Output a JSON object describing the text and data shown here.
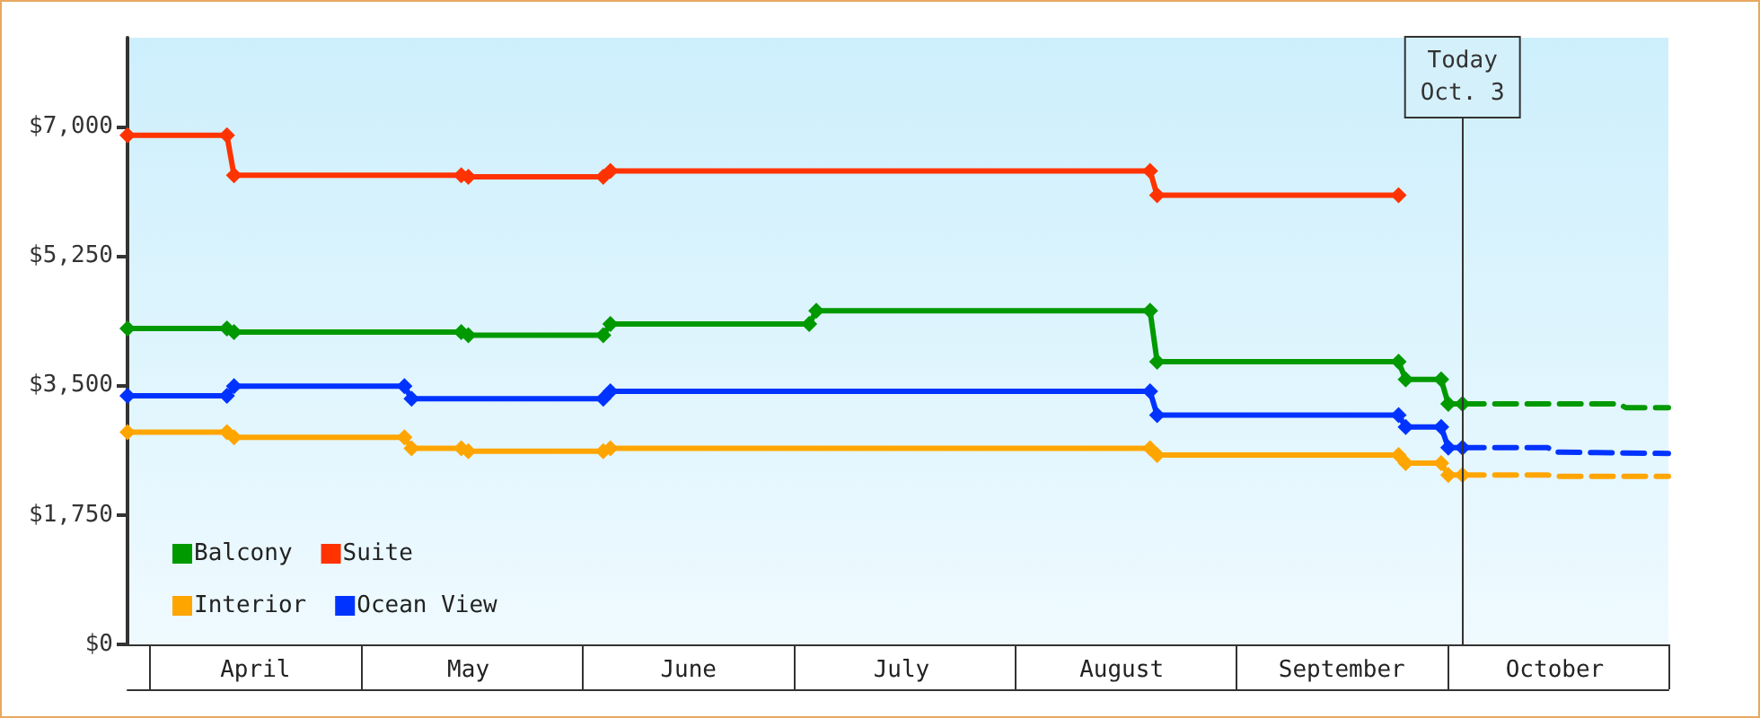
{
  "chart_data": {
    "type": "line",
    "xlim": [
      "--03-29",
      "--11-01"
    ],
    "xticks": [
      {
        "value": "--04-01",
        "label": null
      },
      {
        "value": "--04-16",
        "label": "April"
      },
      {
        "value": "--05-01",
        "label": null
      },
      {
        "value": "--05-16",
        "label": "May"
      },
      {
        "value": "--06-01",
        "label": null
      },
      {
        "value": "--06-16",
        "label": "June"
      },
      {
        "value": "--07-01",
        "label": null
      },
      {
        "value": "--07-16",
        "label": "July"
      },
      {
        "value": "--08-01",
        "label": null
      },
      {
        "value": "--08-16",
        "label": "August"
      },
      {
        "value": "--09-01",
        "label": null
      },
      {
        "value": "--09-16",
        "label": "September"
      },
      {
        "value": "--10-01",
        "label": null
      },
      {
        "value": "--10-16",
        "label": "October"
      },
      {
        "value": "--11-01",
        "label": null
      }
    ],
    "ylim": [
      0,
      8200
    ],
    "yticks": [
      {
        "value": 0,
        "label": "$0"
      },
      {
        "value": 1750,
        "label": "$1,750"
      },
      {
        "value": 3500,
        "label": "$3,500"
      },
      {
        "value": 5250,
        "label": "$5,250"
      },
      {
        "value": 7000,
        "label": "$7,000"
      }
    ],
    "grid": false,
    "legend": "bottom left",
    "marker": "diamond",
    "line_style": "solid",
    "ref_lines": [
      {
        "axis": "x",
        "value": "--10-03",
        "label": "Today\nOct. 3",
        "color": "#333333"
      }
    ],
    "series": [
      {
        "name": "Balcony",
        "color": "#009900",
        "x": [
          "--03-29",
          "--04-12",
          "--04-13",
          "--05-15",
          "--05-16",
          "--06-04",
          "--06-05",
          "--07-03",
          "--07-04",
          "--08-20",
          "--08-21",
          "--09-24",
          "--09-25",
          "--09-30",
          "--10-01",
          "--10-03"
        ],
        "values": [
          4270,
          4270,
          4220,
          4220,
          4180,
          4180,
          4330,
          4330,
          4510,
          4510,
          3820,
          3820,
          3580,
          3580,
          3250,
          3250
        ]
      },
      {
        "name": "Suite",
        "color": "#ff3300",
        "x": [
          "--03-29",
          "--04-12",
          "--04-13",
          "--05-15",
          "--05-16",
          "--06-04",
          "--06-05",
          "--08-20",
          "--08-21",
          "--09-24"
        ],
        "values": [
          6880,
          6880,
          6340,
          6340,
          6320,
          6320,
          6400,
          6400,
          6070,
          6070
        ]
      },
      {
        "name": "Interior",
        "color": "#ffa500",
        "x": [
          "--03-29",
          "--04-12",
          "--04-13",
          "--05-07",
          "--05-08",
          "--05-15",
          "--05-16",
          "--06-04",
          "--06-05",
          "--08-20",
          "--08-21",
          "--09-24",
          "--09-25",
          "--09-30",
          "--10-01",
          "--10-03"
        ],
        "values": [
          2870,
          2870,
          2800,
          2800,
          2650,
          2650,
          2610,
          2610,
          2650,
          2650,
          2560,
          2560,
          2450,
          2450,
          2290,
          2290
        ]
      },
      {
        "name": "Ocean View",
        "color": "#0033ff",
        "x": [
          "--03-29",
          "--04-12",
          "--04-13",
          "--05-07",
          "--05-08",
          "--06-04",
          "--06-05",
          "--08-20",
          "--08-21",
          "--09-24",
          "--09-25",
          "--09-30",
          "--10-01",
          "--10-03"
        ],
        "values": [
          3360,
          3360,
          3490,
          3490,
          3320,
          3320,
          3420,
          3420,
          3100,
          3100,
          2940,
          2940,
          2660,
          2660
        ]
      },
      {
        "color": "#009900",
        "marker": "none",
        "line_style": "dashed",
        "x": [
          "--10-03",
          "--10-25",
          "--10-26",
          "--11-01"
        ],
        "values": [
          3250,
          3250,
          3200,
          3200
        ]
      },
      {
        "color": "#ffa500",
        "marker": "none",
        "line_style": "dashed",
        "x": [
          "--10-03",
          "--10-15",
          "--10-16",
          "--11-01"
        ],
        "values": [
          2290,
          2290,
          2270,
          2270
        ]
      },
      {
        "color": "#0033ff",
        "marker": "none",
        "line_style": "dashed",
        "x": [
          "--10-03",
          "--10-15",
          "--10-16",
          "--11-01"
        ],
        "values": [
          2660,
          2660,
          2600,
          2580
        ]
      }
    ]
  }
}
